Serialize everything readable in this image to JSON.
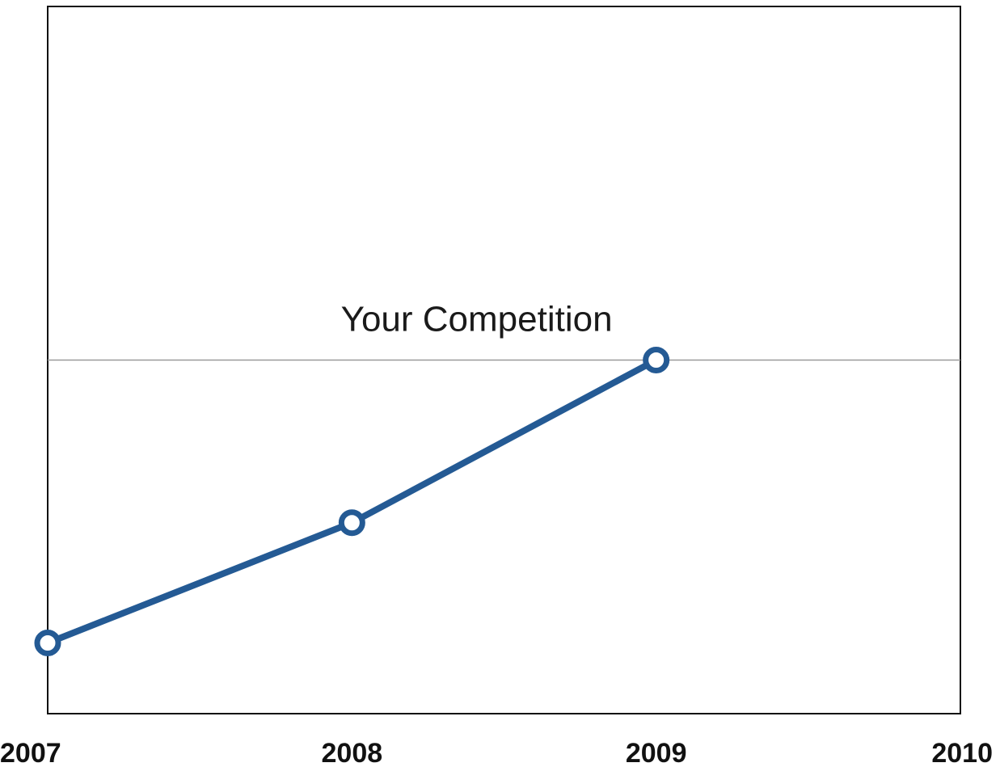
{
  "chart_data": {
    "type": "line",
    "x": [
      "2007",
      "2008",
      "2009"
    ],
    "categories": [
      "2007",
      "2008",
      "2009",
      "2010"
    ],
    "series": [
      {
        "values": [
          10,
          27,
          50
        ],
        "color": "#245a94"
      }
    ],
    "reference_line": {
      "label": "Your Competition",
      "value": 50,
      "color": "#999999"
    },
    "ylim": [
      0,
      100
    ],
    "xlabel": "",
    "ylabel": "",
    "grid": false,
    "legend": "none",
    "colors": {
      "axis": "#111111",
      "text": "#111111",
      "background": "#ffffff"
    }
  }
}
